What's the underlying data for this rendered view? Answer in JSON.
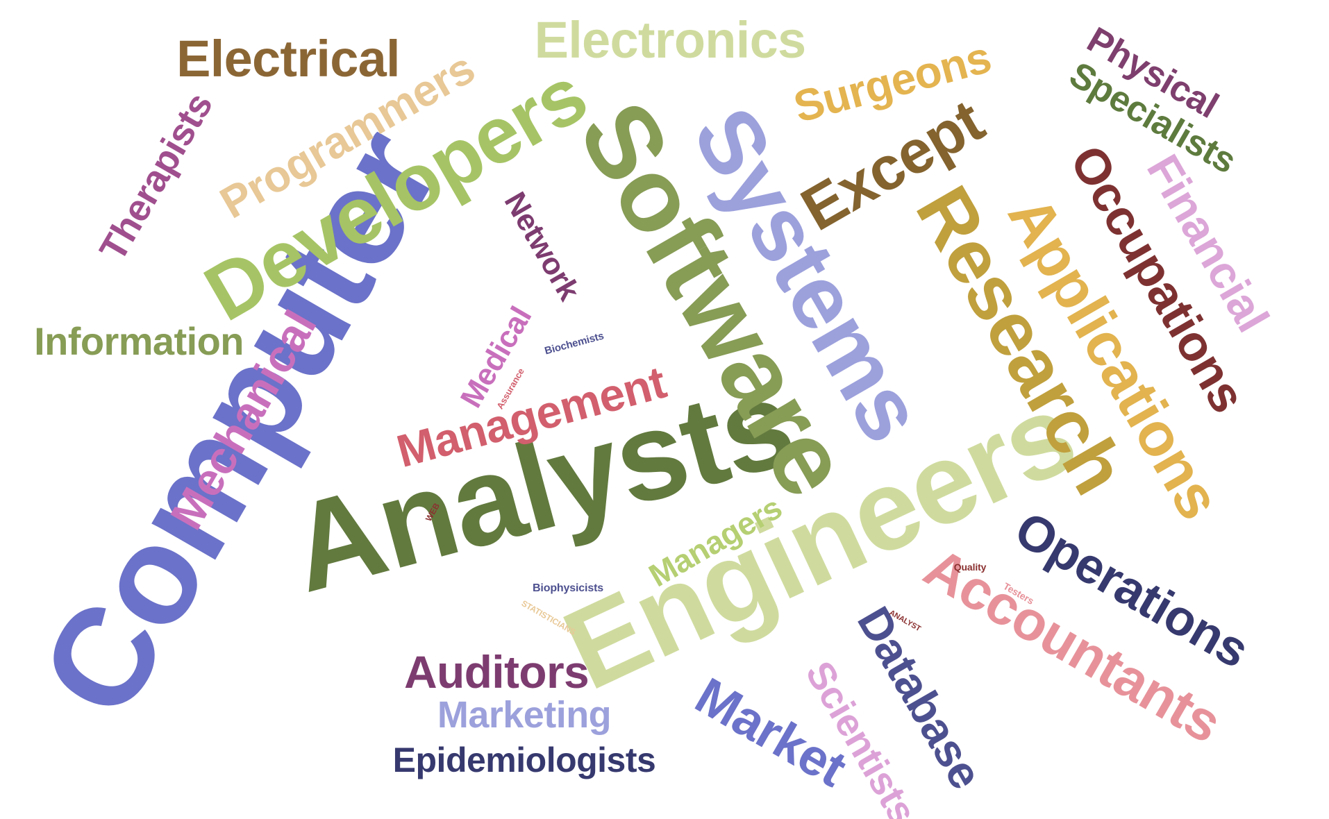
{
  "words": {
    "computer": {
      "text": "Computer",
      "color": "#6b72c9"
    },
    "analysts": {
      "text": "Analysts",
      "color": "#627a3e"
    },
    "engineers": {
      "text": "Engineers",
      "color": "#cfdb9e"
    },
    "software": {
      "text": "Software",
      "color": "#879c55"
    },
    "systems": {
      "text": "Systems",
      "color": "#9ca1dc"
    },
    "developers": {
      "text": "Developers",
      "color": "#a6c465"
    },
    "research": {
      "text": "Research",
      "color": "#c0a03d"
    },
    "applications": {
      "text": "Applications",
      "color": "#e2b34f"
    },
    "occupations": {
      "text": "Occupations",
      "color": "#7e3131"
    },
    "except": {
      "text": "Except",
      "color": "#84632e"
    },
    "accountants": {
      "text": "Accountants",
      "color": "#e7929a"
    },
    "operations": {
      "text": "Operations",
      "color": "#36396e"
    },
    "database": {
      "text": "Database",
      "color": "#4d508f"
    },
    "market": {
      "text": "Market",
      "color": "#6b72c9"
    },
    "scientists": {
      "text": "Scientists",
      "color": "#dca2d7"
    },
    "management": {
      "text": "Management",
      "color": "#d25f6d"
    },
    "mechanical": {
      "text": "Mechanical",
      "color": "#c86fbc"
    },
    "programmers": {
      "text": "Programmers",
      "color": "#e8c896"
    },
    "electrical": {
      "text": "Electrical",
      "color": "#8b6635"
    },
    "electronics": {
      "text": "Electronics",
      "color": "#cfdb9e"
    },
    "surgeons": {
      "text": "Surgeons",
      "color": "#e4b450"
    },
    "physical": {
      "text": "Physical",
      "color": "#7e3f6e"
    },
    "specialists": {
      "text": "Specialists",
      "color": "#5e7b3e"
    },
    "financial": {
      "text": "Financial",
      "color": "#dca6d8"
    },
    "therapists": {
      "text": "Therapists",
      "color": "#a04f8e"
    },
    "network": {
      "text": "Network",
      "color": "#7d3c70"
    },
    "medical": {
      "text": "Medical",
      "color": "#c86fbc"
    },
    "information": {
      "text": "Information",
      "color": "#879c55"
    },
    "auditors": {
      "text": "Auditors",
      "color": "#7d3c70"
    },
    "marketing": {
      "text": "Marketing",
      "color": "#9ca1dc"
    },
    "epidemiologists": {
      "text": "Epidemiologists",
      "color": "#36396e"
    },
    "managers": {
      "text": "Managers",
      "color": "#b5cf72"
    },
    "biochemists": {
      "text": "Biochemists",
      "color": "#4d508f"
    },
    "assurance": {
      "text": "Assurance",
      "color": "#d25f6d"
    },
    "web": {
      "text": "WEB",
      "color": "#8b3030"
    },
    "biophysicists": {
      "text": "Biophysicists",
      "color": "#4d508f"
    },
    "statisticians": {
      "text": "STATISTICIANS",
      "color": "#e8c896"
    },
    "quality": {
      "text": "Quality",
      "color": "#8b3030"
    },
    "testers": {
      "text": "Testers",
      "color": "#e7929a"
    },
    "analyst": {
      "text": "ANALYST",
      "color": "#8b3030"
    }
  }
}
